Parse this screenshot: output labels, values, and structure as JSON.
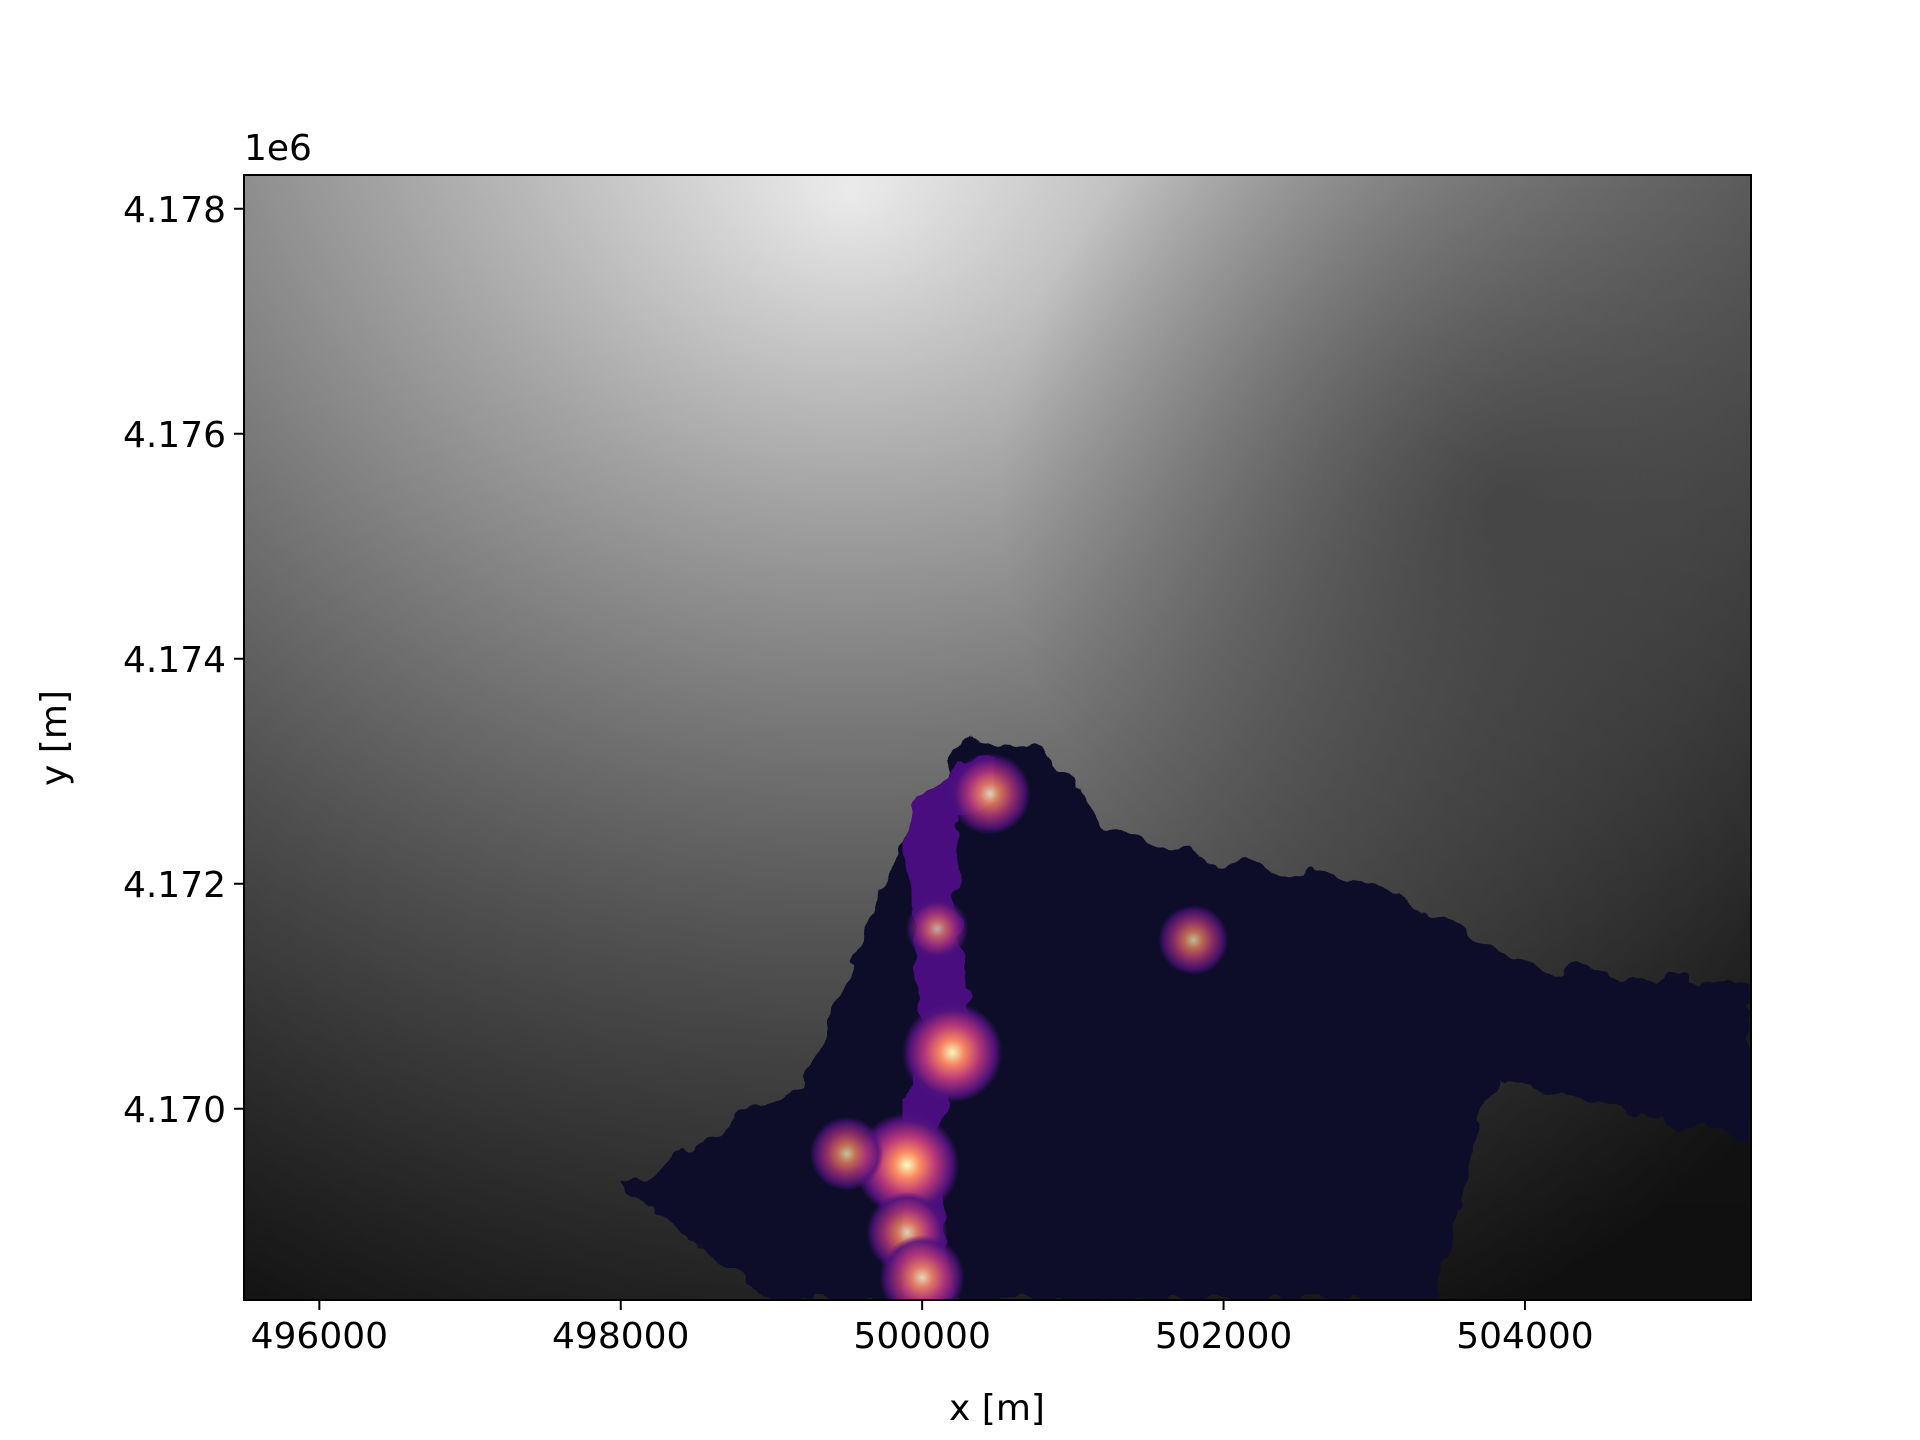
{
  "chart_data": {
    "type": "heatmap",
    "title": "",
    "xlabel": "x [m]",
    "ylabel": "y [m]",
    "y_offset_label": "1e6",
    "xlim": [
      495500,
      505500
    ],
    "ylim": [
      4168300,
      4178300
    ],
    "xticks": [
      {
        "value": 496000,
        "label": "496000"
      },
      {
        "value": 498000,
        "label": "498000"
      },
      {
        "value": 500000,
        "label": "500000"
      },
      {
        "value": 502000,
        "label": "502000"
      },
      {
        "value": 504000,
        "label": "504000"
      }
    ],
    "yticks": [
      {
        "value": 4170000,
        "label": "4.170"
      },
      {
        "value": 4172000,
        "label": "4.172"
      },
      {
        "value": 4174000,
        "label": "4.174"
      },
      {
        "value": 4176000,
        "label": "4.176"
      },
      {
        "value": 4178000,
        "label": "4.178"
      }
    ],
    "grid": false,
    "legend": "none",
    "layers": [
      {
        "name": "terrain elevation",
        "colormap": "gray",
        "style": "filled contours"
      },
      {
        "name": "lava flow density",
        "colormap": "magma",
        "style": "filled contours"
      }
    ],
    "terrain_high_point": {
      "x": 499500,
      "y": 4178000
    },
    "flow_footprint": [
      [
        500300,
        4173300
      ],
      [
        500800,
        4173200
      ],
      [
        501200,
        4172500
      ],
      [
        502000,
        4172200
      ],
      [
        503000,
        4172000
      ],
      [
        504000,
        4171300
      ],
      [
        505500,
        4171100
      ],
      [
        505500,
        4169700
      ],
      [
        503800,
        4170300
      ],
      [
        503400,
        4168300
      ],
      [
        499000,
        4168300
      ],
      [
        498000,
        4169300
      ],
      [
        499200,
        4170200
      ],
      [
        499800,
        4172200
      ]
    ],
    "flow_hotspots": [
      {
        "x": 500450,
        "y": 4172800,
        "level": 0.7
      },
      {
        "x": 500200,
        "y": 4170500,
        "level": 0.95
      },
      {
        "x": 499900,
        "y": 4169500,
        "level": 1.0
      },
      {
        "x": 499500,
        "y": 4169600,
        "level": 0.6
      },
      {
        "x": 499900,
        "y": 4168900,
        "level": 0.7
      },
      {
        "x": 500000,
        "y": 4168500,
        "level": 0.75
      },
      {
        "x": 501800,
        "y": 4171500,
        "level": 0.55
      },
      {
        "x": 500100,
        "y": 4171600,
        "level": 0.45
      }
    ],
    "colors": {
      "flow_base": "#0f0a2b",
      "flow_low": "#4a1080",
      "flow_mid": "#b73779",
      "flow_high": "#fc8961",
      "flow_peak": "#fcfdbf"
    }
  }
}
